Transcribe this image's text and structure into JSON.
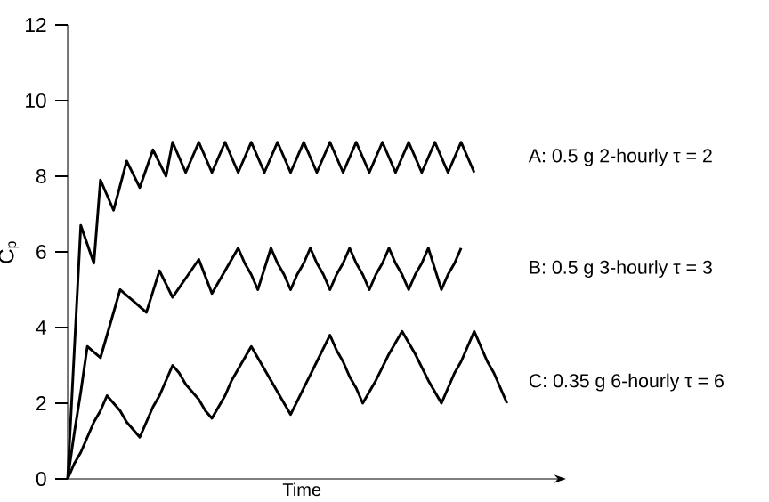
{
  "chart_data": {
    "type": "line",
    "xlabel": "Time",
    "ylabel": "C$_{p}$",
    "categories": [
      null,
      null,
      null,
      null,
      null,
      null,
      null,
      null,
      null,
      null,
      null,
      null,
      null,
      null,
      null,
      null,
      null,
      null,
      null,
      null,
      null,
      null,
      null,
      null,
      null,
      null,
      null,
      null,
      null,
      null,
      null,
      null,
      null,
      null,
      null,
      null,
      null,
      null,
      null,
      null,
      null,
      null,
      null,
      null,
      null,
      null,
      null,
      null,
      null,
      null,
      null,
      null,
      null,
      null,
      null,
      null,
      null,
      null,
      null,
      null,
      null,
      null,
      null,
      null,
      null,
      null,
      null,
      null,
      null,
      null,
      null,
      null,
      null,
      null,
      null,
      null,
      null
    ],
    "ylim": [
      0,
      12
    ],
    "yticks": [
      0,
      2,
      4,
      6,
      8,
      10,
      12
    ],
    "tick_labels": "y",
    "marker": "none",
    "line_style": "solid",
    "series": [
      {
        "name": "A: 0.5 g 2-hourly  τ = 2",
        "color": "#000000",
        "values": [
          0,
          3.35,
          6.7,
          6.2,
          5.7,
          7.9,
          7.5,
          7.1,
          7.75,
          8.4,
          8.05,
          7.7,
          8.2,
          8.7,
          8.35,
          8.0,
          8.9,
          8.5,
          8.1,
          8.5,
          8.9,
          8.5,
          8.1,
          8.5,
          8.9,
          8.5,
          8.1,
          8.5,
          8.9,
          8.5,
          8.1,
          8.5,
          8.9,
          8.5,
          8.1,
          8.5,
          8.9,
          8.5,
          8.1,
          8.5,
          8.9,
          8.5,
          8.1,
          8.5,
          8.9,
          8.5,
          8.1,
          8.5,
          8.9,
          8.5,
          8.1,
          8.5,
          8.9,
          8.5,
          8.1,
          8.5,
          8.9,
          8.5,
          8.1,
          8.5,
          8.9,
          8.5,
          8.1,
          null,
          null,
          null,
          null,
          null,
          null,
          null,
          null,
          null,
          null,
          null,
          null,
          null,
          null
        ]
      },
      {
        "name": "B: 0.5 g 3-hourly  τ = 3",
        "color": "#000000",
        "values": [
          0,
          1.2,
          2.3,
          3.5,
          3.35,
          3.2,
          3.8,
          4.4,
          5.0,
          4.85,
          4.7,
          4.55,
          4.4,
          4.95,
          5.5,
          5.15,
          4.8,
          5.05,
          5.3,
          5.55,
          5.8,
          5.35,
          4.9,
          5.2,
          5.5,
          5.8,
          6.1,
          5.7,
          5.4,
          5.0,
          5.55,
          6.1,
          5.7,
          5.4,
          5.0,
          5.4,
          5.7,
          6.1,
          5.7,
          5.4,
          5.0,
          5.4,
          5.7,
          6.1,
          5.7,
          5.4,
          5.0,
          5.4,
          5.7,
          6.1,
          5.7,
          5.4,
          5.0,
          5.4,
          5.7,
          6.1,
          5.55,
          5.0,
          5.4,
          5.7,
          6.1,
          null,
          null,
          null,
          null,
          null,
          null,
          null,
          null,
          null,
          null,
          null,
          null,
          null,
          null,
          null,
          null
        ]
      },
      {
        "name": "C: 0.35 g 6-hourly  τ = 6",
        "color": "#000000",
        "values": [
          0,
          0.4,
          0.7,
          1.1,
          1.5,
          1.8,
          2.2,
          2.0,
          1.8,
          1.5,
          1.3,
          1.1,
          1.5,
          1.9,
          2.2,
          2.6,
          3.0,
          2.8,
          2.5,
          2.3,
          2.1,
          1.8,
          1.6,
          1.9,
          2.2,
          2.6,
          2.9,
          3.2,
          3.5,
          3.2,
          2.9,
          2.6,
          2.3,
          2.0,
          1.7,
          2.05,
          2.4,
          2.75,
          3.1,
          3.45,
          3.8,
          3.4,
          3.1,
          2.7,
          2.4,
          2.0,
          2.3,
          2.6,
          2.95,
          3.3,
          3.6,
          3.9,
          3.6,
          3.3,
          2.95,
          2.6,
          2.3,
          2.0,
          2.4,
          2.8,
          3.1,
          3.5,
          3.9,
          3.5,
          3.1,
          2.8,
          2.4,
          2.0,
          null,
          null,
          null,
          null,
          null,
          null,
          null,
          null,
          null
        ]
      }
    ]
  }
}
